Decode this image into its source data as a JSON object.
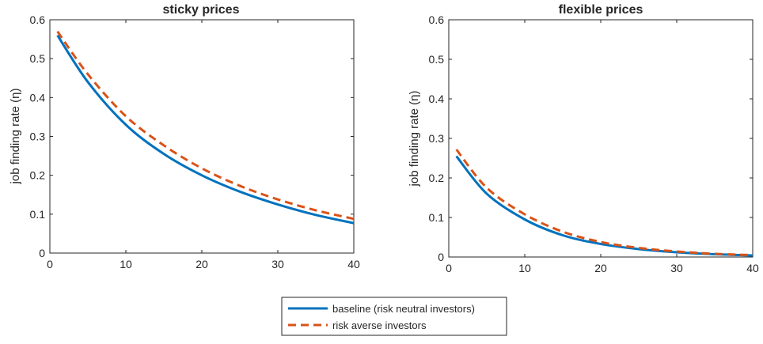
{
  "chart_data": [
    {
      "type": "line",
      "title": "sticky prices",
      "xlabel": "",
      "ylabel": "job finding rate (η)",
      "xlim": [
        0,
        40
      ],
      "ylim": [
        0,
        0.6
      ],
      "xticks": [
        0,
        10,
        20,
        30,
        40
      ],
      "yticks": [
        0,
        0.1,
        0.2,
        0.3,
        0.4,
        0.5,
        0.6
      ],
      "xtick_labels": [
        "0",
        "10",
        "20",
        "30",
        "40"
      ],
      "ytick_labels": [
        "0",
        "0.1",
        "0.2",
        "0.3",
        "0.4",
        "0.5",
        "0.6"
      ],
      "grid": false,
      "series": [
        {
          "name": "baseline (risk neutral investors)",
          "style": "solid",
          "color": "#0072BD",
          "x": [
            1,
            5,
            10,
            15,
            20,
            25,
            30,
            35,
            40
          ],
          "y": [
            0.56,
            0.44,
            0.33,
            0.255,
            0.2,
            0.158,
            0.125,
            0.098,
            0.077
          ]
        },
        {
          "name": "risk averse investors",
          "style": "dashed",
          "color": "#D95319",
          "x": [
            1,
            5,
            10,
            15,
            20,
            25,
            30,
            35,
            40
          ],
          "y": [
            0.57,
            0.46,
            0.352,
            0.277,
            0.218,
            0.173,
            0.138,
            0.11,
            0.088
          ]
        }
      ]
    },
    {
      "type": "line",
      "title": "flexible prices",
      "xlabel": "",
      "ylabel": "job finding rate (η)",
      "xlim": [
        0,
        40
      ],
      "ylim": [
        0,
        0.6
      ],
      "xticks": [
        0,
        10,
        20,
        30,
        40
      ],
      "yticks": [
        0,
        0.1,
        0.2,
        0.3,
        0.4,
        0.5,
        0.6
      ],
      "xtick_labels": [
        "0",
        "10",
        "20",
        "30",
        "40"
      ],
      "ytick_labels": [
        "0",
        "0.1",
        "0.2",
        "0.3",
        "0.4",
        "0.5",
        "0.6"
      ],
      "grid": false,
      "series": [
        {
          "name": "baseline (risk neutral investors)",
          "style": "solid",
          "color": "#0072BD",
          "x": [
            1,
            5,
            10,
            15,
            20,
            25,
            30,
            35,
            40
          ],
          "y": [
            0.255,
            0.16,
            0.095,
            0.055,
            0.033,
            0.02,
            0.012,
            0.007,
            0.004
          ]
        },
        {
          "name": "risk averse investors",
          "style": "dashed",
          "color": "#D95319",
          "x": [
            1,
            5,
            10,
            15,
            20,
            25,
            30,
            35,
            40
          ],
          "y": [
            0.272,
            0.175,
            0.108,
            0.064,
            0.038,
            0.023,
            0.014,
            0.008,
            0.005
          ]
        }
      ]
    }
  ],
  "legend": {
    "placement": "bottom-center",
    "entries": [
      {
        "label": "baseline (risk neutral investors)",
        "style": "solid",
        "color": "#0072BD"
      },
      {
        "label": "risk averse investors",
        "style": "dashed",
        "color": "#D95319"
      }
    ]
  }
}
